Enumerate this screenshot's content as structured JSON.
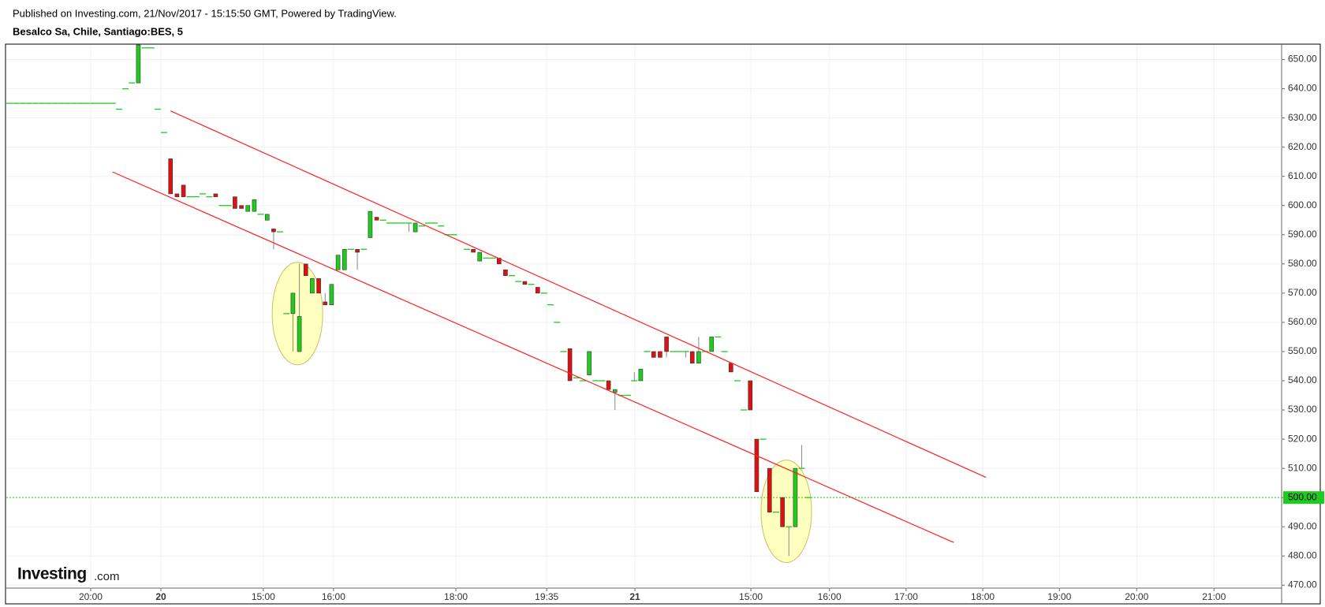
{
  "header": {
    "published": "Published on Investing.com, 21/Nov/2017 - 15:15:50 GMT, Powered by TradingView.",
    "symbol": "Besalco Sa, Chile, Santiago:BES, 5"
  },
  "logo": {
    "name": "Investing",
    "suffix": ".com"
  },
  "chart_data": {
    "type": "candlestick",
    "up_color": "#1ecb1e",
    "down_color": "#dd1111",
    "grid": true,
    "x": [
      0,
      1,
      2,
      3,
      4,
      5,
      6,
      7,
      8,
      9,
      10,
      11,
      12,
      13,
      14,
      15,
      16,
      17,
      18,
      19,
      20,
      21,
      22,
      23,
      24,
      25,
      26,
      27,
      28,
      29,
      30,
      31,
      32,
      33,
      34,
      35,
      36,
      37,
      38,
      39,
      40,
      41,
      42,
      43,
      44,
      45,
      46,
      47,
      48,
      49,
      50,
      51,
      52,
      53,
      54,
      55,
      56,
      57,
      58,
      59,
      60,
      61,
      62,
      63,
      64,
      65,
      66,
      67,
      68,
      69,
      71,
      72,
      73,
      74,
      75,
      76,
      77,
      78,
      79,
      80,
      81,
      82,
      83,
      84,
      85,
      86,
      87,
      88,
      89,
      90,
      91,
      92,
      93,
      94,
      95,
      96,
      97,
      98,
      99,
      100,
      101,
      102,
      103,
      104,
      105,
      106,
      107,
      108,
      109,
      110,
      111,
      112,
      113,
      114,
      115,
      116,
      117,
      118,
      119,
      120,
      121,
      122,
      123,
      124
    ],
    "open": [
      635,
      635,
      635,
      635,
      635,
      635,
      635,
      635,
      635,
      635,
      635,
      635,
      635,
      635,
      635,
      635,
      635,
      633,
      640,
      642,
      642,
      654,
      654,
      633,
      625,
      616,
      604,
      607,
      603,
      603,
      604,
      603,
      604,
      600,
      600,
      603,
      600,
      598,
      598,
      597,
      595,
      592,
      591,
      563,
      563,
      550,
      580,
      570,
      575,
      567,
      566,
      578,
      578,
      585,
      585,
      585,
      589,
      596,
      595,
      594,
      594,
      594,
      594,
      591,
      593,
      594,
      594,
      593,
      590,
      590,
      585,
      585,
      581,
      582,
      582,
      582,
      578,
      576,
      574,
      574,
      573,
      572,
      570,
      566,
      560,
      550,
      551,
      541,
      540,
      542,
      540,
      540,
      540,
      536,
      535,
      535,
      540,
      540,
      550,
      550,
      550,
      555,
      550,
      550,
      550,
      550,
      546,
      550,
      550,
      555,
      550,
      546,
      540,
      530,
      540,
      520,
      520,
      510,
      495,
      500,
      490,
      490,
      510,
      500
    ],
    "high": [
      635,
      635,
      635,
      635,
      635,
      635,
      635,
      635,
      635,
      635,
      635,
      635,
      635,
      635,
      635,
      635,
      635,
      633,
      640,
      642,
      655,
      654,
      654,
      633,
      625,
      616,
      604,
      607,
      603,
      603,
      604,
      603,
      604,
      600,
      600,
      603,
      600,
      600,
      602,
      597,
      597,
      592,
      591,
      563,
      570,
      580,
      580,
      575,
      575,
      570,
      573,
      583,
      585,
      585,
      585,
      585,
      598,
      596,
      595,
      594,
      594,
      594,
      594,
      594,
      593,
      594,
      594,
      593,
      590,
      590,
      585,
      585,
      584,
      582,
      582,
      582,
      578,
      576,
      574,
      574,
      573,
      572,
      570,
      566,
      560,
      550,
      551,
      541,
      540,
      550,
      540,
      540,
      540,
      537,
      535,
      535,
      543,
      544,
      550,
      550,
      550,
      555,
      550,
      550,
      550,
      550,
      555,
      550,
      555,
      555,
      550,
      546,
      540,
      530,
      540,
      520,
      520,
      510,
      495,
      500,
      490,
      510,
      518,
      500
    ],
    "low": [
      635,
      635,
      635,
      635,
      635,
      635,
      635,
      635,
      635,
      635,
      635,
      635,
      635,
      635,
      635,
      635,
      635,
      633,
      640,
      642,
      642,
      654,
      654,
      633,
      625,
      604,
      603,
      603,
      603,
      603,
      604,
      603,
      603,
      600,
      600,
      599,
      599,
      598,
      598,
      597,
      595,
      585,
      591,
      563,
      550,
      550,
      576,
      570,
      570,
      566,
      566,
      578,
      578,
      585,
      578,
      585,
      589,
      595,
      595,
      594,
      594,
      594,
      591,
      591,
      593,
      594,
      594,
      593,
      590,
      590,
      585,
      584,
      581,
      582,
      582,
      580,
      576,
      576,
      574,
      573,
      573,
      570,
      570,
      566,
      560,
      550,
      540,
      541,
      540,
      542,
      540,
      540,
      537,
      530,
      535,
      535,
      540,
      540,
      550,
      548,
      548,
      548,
      550,
      550,
      548,
      546,
      546,
      550,
      550,
      555,
      550,
      543,
      540,
      530,
      530,
      502,
      520,
      495,
      495,
      490,
      480,
      490,
      510,
      500
    ],
    "close": [
      635,
      635,
      635,
      635,
      635,
      635,
      635,
      635,
      635,
      635,
      635,
      635,
      635,
      635,
      635,
      635,
      635,
      633,
      640,
      642,
      655,
      654,
      654,
      633,
      625,
      604,
      603,
      603,
      603,
      603,
      604,
      603,
      603,
      600,
      600,
      599,
      599,
      600,
      602,
      597,
      597,
      591,
      591,
      563,
      570,
      562,
      576,
      575,
      570,
      566,
      573,
      583,
      585,
      585,
      584,
      585,
      598,
      595,
      595,
      594,
      594,
      594,
      594,
      594,
      593,
      594,
      594,
      593,
      590,
      590,
      585,
      584,
      584,
      582,
      582,
      580,
      576,
      576,
      574,
      573,
      573,
      570,
      570,
      566,
      560,
      550,
      540,
      541,
      540,
      550,
      540,
      540,
      537,
      537,
      535,
      535,
      540,
      544,
      550,
      548,
      548,
      550,
      550,
      550,
      550,
      546,
      550,
      550,
      555,
      555,
      550,
      543,
      540,
      530,
      530,
      502,
      520,
      495,
      495,
      490,
      490,
      510,
      510,
      500
    ],
    "xlim": [
      0,
      198
    ],
    "xticks": [
      {
        "value": 12.6,
        "label": "20:00"
      },
      {
        "value": 23.5,
        "label": "20"
      },
      {
        "value": 39.4,
        "label": "15:00"
      },
      {
        "value": 50.3,
        "label": "16:00"
      },
      {
        "value": 69.3,
        "label": "18:00"
      },
      {
        "value": 83.4,
        "label": "19:35"
      },
      {
        "value": 97.1,
        "label": "21"
      },
      {
        "value": 115.1,
        "label": "15:00"
      },
      {
        "value": 127.3,
        "label": "16:00"
      },
      {
        "value": 139.2,
        "label": "17:00"
      },
      {
        "value": 151.1,
        "label": "18:00"
      },
      {
        "value": 163,
        "label": "19:00"
      },
      {
        "value": 175,
        "label": "20:00"
      },
      {
        "value": 187,
        "label": "21:00"
      }
    ],
    "ylim": [
      469,
      655
    ],
    "yticks": [
      {
        "value": 470,
        "label": "470.00"
      },
      {
        "value": 480,
        "label": "480.00"
      },
      {
        "value": 490,
        "label": "490.00"
      },
      {
        "value": 500,
        "label": "500.00"
      },
      {
        "value": 510,
        "label": "510.00"
      },
      {
        "value": 520,
        "label": "520.00"
      },
      {
        "value": 530,
        "label": "530.00"
      },
      {
        "value": 540,
        "label": "540.00"
      },
      {
        "value": 550,
        "label": "550.00"
      },
      {
        "value": 560,
        "label": "560.00"
      },
      {
        "value": 570,
        "label": "570.00"
      },
      {
        "value": 580,
        "label": "580.00"
      },
      {
        "value": 590,
        "label": "590.00"
      },
      {
        "value": 600,
        "label": "600.00"
      },
      {
        "value": 610,
        "label": "610.00"
      },
      {
        "value": 620,
        "label": "620.00"
      },
      {
        "value": 630,
        "label": "630.00"
      },
      {
        "value": 640,
        "label": "640.00"
      },
      {
        "value": 650,
        "label": "650.00"
      }
    ],
    "last_price": {
      "value": 500,
      "label": "500.00",
      "color": "#1ecb1e"
    },
    "trendlines": [
      {
        "x": [
          25,
          151.6
        ],
        "y": [
          632.4,
          506.9
        ],
        "color": "#ff2020"
      },
      {
        "x": [
          16,
          146.6
        ],
        "y": [
          611.5,
          484.6
        ],
        "color": "#ff2020"
      }
    ],
    "highlights": [
      {
        "x": 44.7,
        "y": 563,
        "color": "#ffffc0"
      },
      {
        "x": 120.6,
        "y": 495.3,
        "color": "#ffffc0"
      }
    ]
  }
}
